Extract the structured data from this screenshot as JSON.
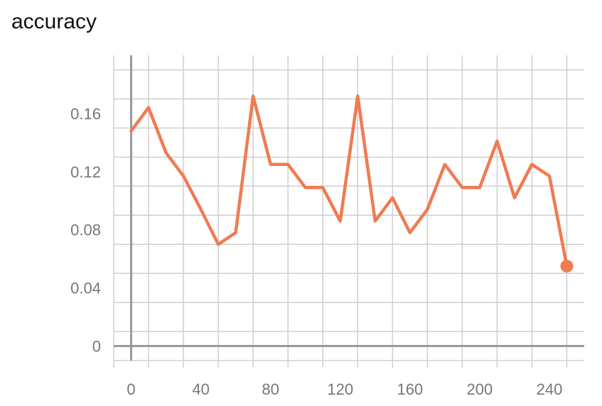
{
  "chart_data": {
    "type": "line",
    "title": "accuracy",
    "xlabel": "",
    "ylabel": "",
    "xlim": [
      -10,
      260
    ],
    "ylim": [
      -0.01,
      0.2
    ],
    "x_ticks": [
      "0",
      "40",
      "80",
      "120",
      "160",
      "200",
      "240"
    ],
    "x_tick_values": [
      0,
      40,
      80,
      120,
      160,
      200,
      240
    ],
    "y_ticks": [
      "0",
      "0.04",
      "0.08",
      "0.12",
      "0.16"
    ],
    "y_tick_values": [
      0,
      0.04,
      0.08,
      0.12,
      0.16
    ],
    "grid": true,
    "series": [
      {
        "x": [
          0,
          10,
          20,
          30,
          40,
          50,
          60,
          70,
          80,
          90,
          100,
          110,
          120,
          130,
          140,
          150,
          160,
          170,
          180,
          190,
          200,
          210,
          220,
          230,
          240,
          250
        ],
        "values": [
          0.148,
          0.164,
          0.133,
          0.117,
          0.094,
          0.07,
          0.078,
          0.172,
          0.125,
          0.125,
          0.109,
          0.109,
          0.086,
          0.172,
          0.086,
          0.102,
          0.078,
          0.094,
          0.125,
          0.109,
          0.109,
          0.141,
          0.102,
          0.125,
          0.117,
          0.055
        ],
        "color": "#f07b53"
      }
    ]
  }
}
